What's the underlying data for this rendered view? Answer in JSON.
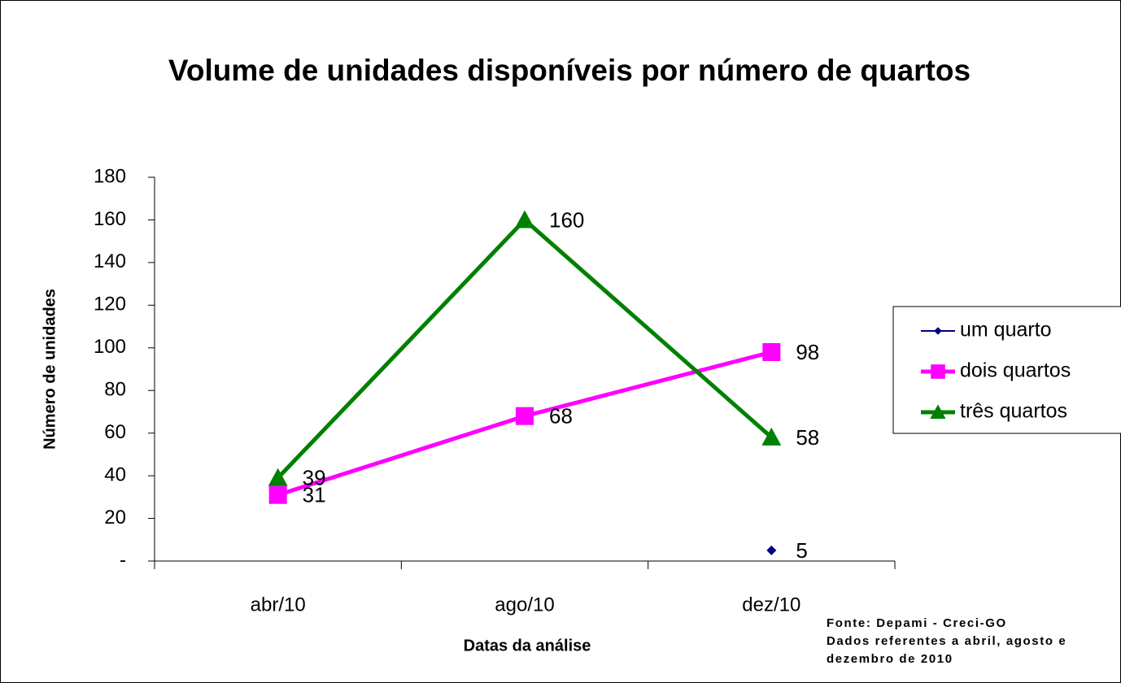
{
  "chart_data": {
    "type": "line",
    "title": "Volume de unidades disponíveis por número de quartos",
    "x_label": "Datas da análise",
    "y_label": "Número de unidades",
    "annotations": [
      "Fonte: Depami - Creci-GO",
      "Dados referentes a abril, agosto e dezembro de 2010"
    ],
    "categories": [
      "abr/10",
      "ago/10",
      "dez/10"
    ],
    "series": [
      {
        "name": "um quarto",
        "color": "#000080",
        "label_color": "#000000",
        "marker": "diamond",
        "values": [
          null,
          null,
          5
        ]
      },
      {
        "name": "dois quartos",
        "color": "#ff00ff",
        "marker": "square",
        "values": [
          31,
          68,
          98
        ]
      },
      {
        "name": "três quartos",
        "color": "#008000",
        "marker": "triangle",
        "values": [
          39,
          160,
          58
        ]
      }
    ],
    "ylim": [
      0,
      180
    ],
    "yticks": [
      {
        "value": 0,
        "label": "-"
      },
      20,
      40,
      60,
      80,
      100,
      120,
      140,
      160,
      180
    ],
    "grid": false,
    "legend": "right"
  }
}
